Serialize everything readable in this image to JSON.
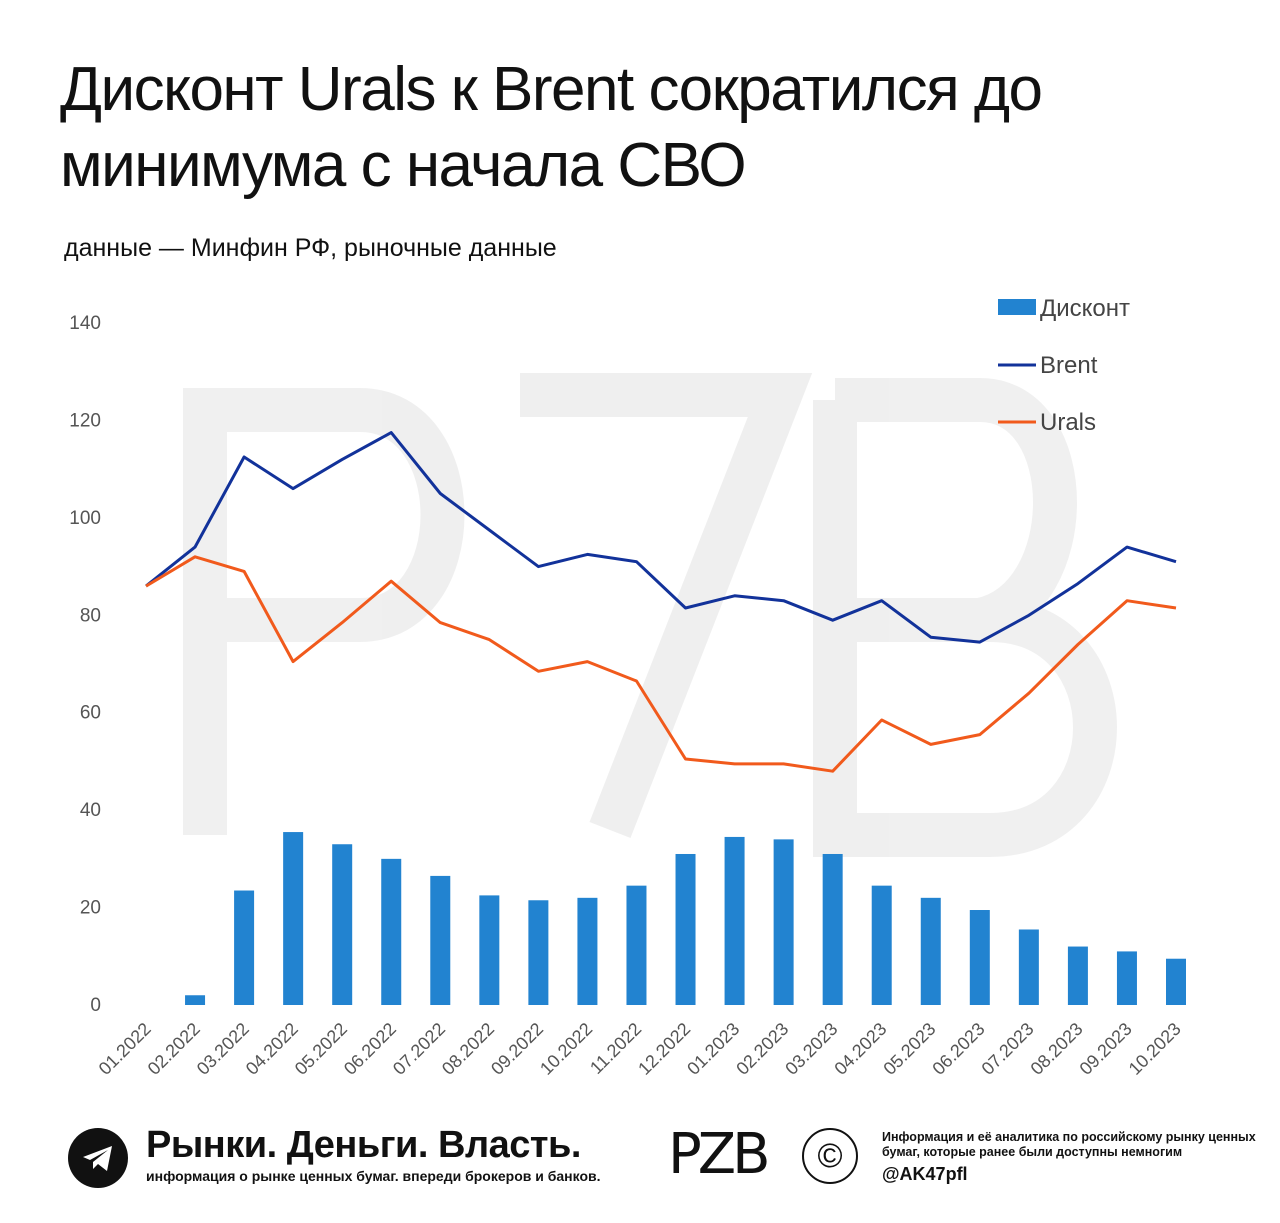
{
  "title": "Дисконт Urals к Brent сократился до минимума с начала СВО",
  "source": "данные — Минфин РФ, рыночные данные",
  "colors": {
    "discount": "#2283d0",
    "brent": "#12329a",
    "urals": "#f15a1c",
    "accent": "#f15a1c"
  },
  "chart_data": {
    "type": "bar+line",
    "categories": [
      "01.2022",
      "02.2022",
      "03.2022",
      "04.2022",
      "05.2022",
      "06.2022",
      "07.2022",
      "08.2022",
      "09.2022",
      "10.2022",
      "11.2022",
      "12.2022",
      "01.2023",
      "02.2023",
      "03.2023",
      "04.2023",
      "05.2023",
      "06.2023",
      "07.2023",
      "08.2023",
      "09.2023",
      "10.2023"
    ],
    "series": [
      {
        "name": "Дисконт",
        "type": "bar",
        "values": [
          0,
          2,
          23.5,
          35.5,
          33,
          30,
          26.5,
          22.5,
          21.5,
          22,
          24.5,
          31,
          34.5,
          34,
          31,
          24.5,
          22,
          19.5,
          15.5,
          12,
          11,
          9.5
        ]
      },
      {
        "name": "Brent",
        "type": "line",
        "values": [
          86,
          94,
          112.5,
          106,
          112,
          117.5,
          105,
          97.5,
          90,
          92.5,
          91,
          81.5,
          84,
          83,
          79,
          83,
          75.5,
          74.5,
          80,
          86.5,
          94,
          91
        ]
      },
      {
        "name": "Urals",
        "type": "line",
        "values": [
          86,
          92,
          89,
          70.5,
          78.5,
          87,
          78.5,
          75,
          68.5,
          70.5,
          66.5,
          50.5,
          49.5,
          49.5,
          48,
          58.5,
          53.5,
          55.5,
          64,
          74,
          83,
          81.5
        ]
      }
    ],
    "yticks": [
      0,
      20,
      40,
      60,
      80,
      100,
      120,
      140
    ],
    "ylim": [
      0,
      140
    ],
    "legend_position": "top-right",
    "grid": false
  },
  "footer": {
    "brand_title": "Рынки. Деньги. Власть.",
    "brand_subtitle": "информация о рынке ценных бумаг. впереди брокеров и банков.",
    "mark": "PZB",
    "copyright": "©",
    "info": "Информация и её аналитика по российскому рынку ценных бумаг, которые ранее были доступны немногим",
    "handle": "@AK47pfl",
    "telegram_icon": "telegram-icon"
  }
}
